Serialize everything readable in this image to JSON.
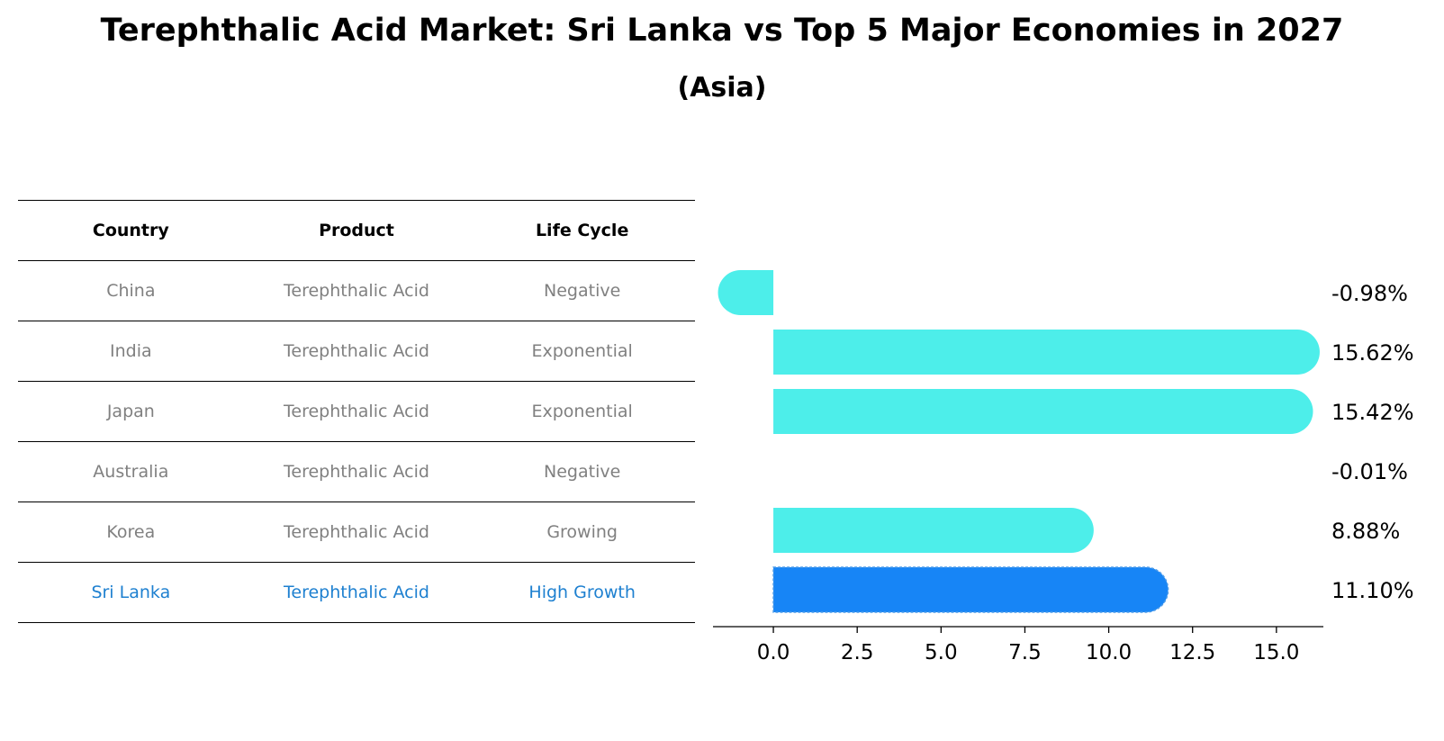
{
  "title": "Terephthalic Acid Market: Sri Lanka vs Top 5 Major Economies in 2027",
  "subtitle": "(Asia)",
  "table": {
    "headers": [
      "Country",
      "Product",
      "Life Cycle"
    ],
    "rows": [
      {
        "country": "China",
        "product": "Terephthalic Acid",
        "life_cycle": "Negative"
      },
      {
        "country": "India",
        "product": "Terephthalic Acid",
        "life_cycle": "Exponential"
      },
      {
        "country": "Japan",
        "product": "Terephthalic Acid",
        "life_cycle": "Exponential"
      },
      {
        "country": "Australia",
        "product": "Terephthalic Acid",
        "life_cycle": "Negative"
      },
      {
        "country": "Korea",
        "product": "Terephthalic Acid",
        "life_cycle": "Growing"
      },
      {
        "country": "Sri Lanka",
        "product": "Terephthalic Acid",
        "life_cycle": "High Growth"
      }
    ]
  },
  "chart_data": {
    "type": "bar",
    "orientation": "horizontal",
    "categories": [
      "China",
      "India",
      "Japan",
      "Australia",
      "Korea",
      "Sri Lanka"
    ],
    "values": [
      -0.98,
      15.62,
      15.42,
      -0.01,
      8.88,
      11.1
    ],
    "value_labels": [
      "-0.98%",
      "15.62%",
      "15.42%",
      "-0.01%",
      "8.88%",
      "11.10%"
    ],
    "highlight_category": "Sri Lanka",
    "xlim": [
      -1.8,
      16.4
    ],
    "xticks": [
      0.0,
      2.5,
      5.0,
      7.5,
      10.0,
      12.5,
      15.0
    ],
    "xtick_labels": [
      "0.0",
      "2.5",
      "5.0",
      "7.5",
      "10.0",
      "12.5",
      "15.0"
    ],
    "colors": {
      "default": "#4deeea",
      "highlight": "#1785f6"
    }
  }
}
